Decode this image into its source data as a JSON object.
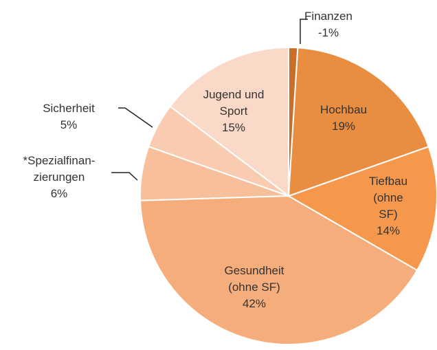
{
  "chart_data": {
    "type": "pie",
    "categories": [
      "Finanzen",
      "Hochbau",
      "Tiefbau\n(ohne SF)",
      "Gesundheit\n(ohne SF)",
      "*Spezialfinan-\nzierungen",
      "Sicherheit",
      "Jugend und\nSport"
    ],
    "values": [
      -1,
      19,
      14,
      42,
      6,
      5,
      15
    ],
    "value_labels": [
      "-1%",
      "19%",
      "14%",
      "42%",
      "6%",
      "5%",
      "15%"
    ],
    "colors": [
      "#c8702a",
      "#e98d41",
      "#f5984c",
      "#f6ad7c",
      "#f8bf9c",
      "#f9cbb0",
      "#fbd9c8"
    ]
  }
}
